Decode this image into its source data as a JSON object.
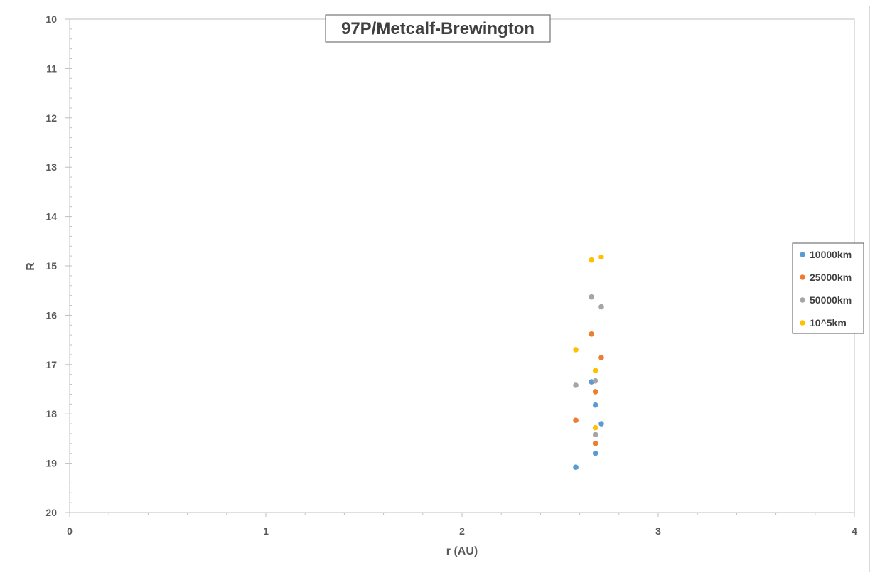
{
  "chart_data": {
    "type": "scatter",
    "title": "97P/Metcalf-Brewington",
    "xlabel": "r (AU)",
    "ylabel": "R",
    "xlim": [
      0,
      4
    ],
    "ylim": [
      10,
      20
    ],
    "y_reversed": true,
    "x_ticks": [
      "0",
      "1",
      "2",
      "3",
      "4"
    ],
    "y_ticks": [
      "10",
      "11",
      "12",
      "13",
      "14",
      "15",
      "16",
      "17",
      "18",
      "19",
      "20"
    ],
    "grid": false,
    "legend_position": "right",
    "series": [
      {
        "name": "10000km",
        "color": "#5b9bd5",
        "points": [
          [
            2.58,
            19.08
          ],
          [
            2.66,
            17.35
          ],
          [
            2.68,
            17.82
          ],
          [
            2.68,
            18.8
          ],
          [
            2.71,
            18.2
          ]
        ]
      },
      {
        "name": "25000km",
        "color": "#ed7d31",
        "points": [
          [
            2.58,
            18.13
          ],
          [
            2.66,
            16.38
          ],
          [
            2.68,
            17.55
          ],
          [
            2.68,
            18.6
          ],
          [
            2.71,
            16.86
          ]
        ]
      },
      {
        "name": "50000km",
        "color": "#a5a5a5",
        "points": [
          [
            2.58,
            17.42
          ],
          [
            2.66,
            15.63
          ],
          [
            2.68,
            17.33
          ],
          [
            2.68,
            18.42
          ],
          [
            2.71,
            15.83
          ]
        ]
      },
      {
        "name": "10^5km",
        "color": "#ffc000",
        "points": [
          [
            2.58,
            16.7
          ],
          [
            2.66,
            14.88
          ],
          [
            2.68,
            17.12
          ],
          [
            2.68,
            18.28
          ],
          [
            2.71,
            14.82
          ]
        ]
      }
    ]
  }
}
